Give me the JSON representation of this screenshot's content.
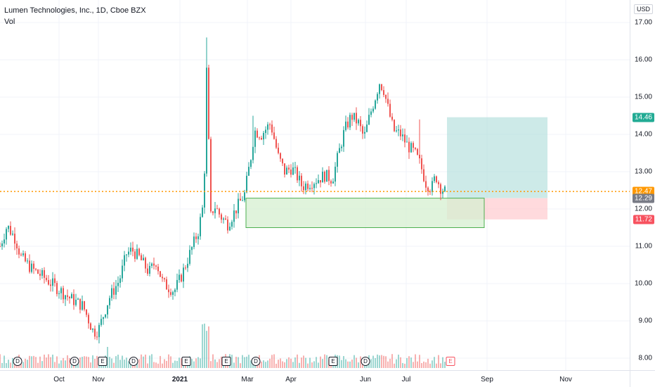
{
  "header": {
    "title": "Lumen Technologies, Inc., 1D, Cboe BZX",
    "volume_label": "Vol",
    "currency": "USD"
  },
  "price_axis": {
    "ticks": [
      "17.00",
      "16.00",
      "15.00",
      "14.00",
      "13.00",
      "12.00",
      "11.00",
      "10.00",
      "9.00",
      "8.00"
    ],
    "tags": [
      {
        "label": "14.46",
        "value": 14.46,
        "color": "#22ab94"
      },
      {
        "label": "12.47",
        "value": 12.47,
        "color": "#ff9800"
      },
      {
        "label": "12.29",
        "value": 12.29,
        "color": "#787b86"
      },
      {
        "label": "11.72",
        "value": 11.72,
        "color": "#f7525f"
      }
    ]
  },
  "time_axis": {
    "labels": [
      {
        "label": "Oct",
        "bold": false
      },
      {
        "label": "Nov",
        "bold": false
      },
      {
        "label": "2021",
        "bold": true
      },
      {
        "label": "Mar",
        "bold": false
      },
      {
        "label": "Apr",
        "bold": false
      },
      {
        "label": "Jun",
        "bold": false
      },
      {
        "label": "Jul",
        "bold": false
      },
      {
        "label": "Sep",
        "bold": false
      },
      {
        "label": "Nov",
        "bold": false
      }
    ]
  },
  "events": [
    {
      "type": "D",
      "kind": "dividend",
      "future": false
    },
    {
      "type": "D",
      "kind": "dividend",
      "future": false
    },
    {
      "type": "E",
      "kind": "earnings",
      "future": false
    },
    {
      "type": "D",
      "kind": "dividend",
      "future": false
    },
    {
      "type": "E",
      "kind": "earnings",
      "future": false
    },
    {
      "type": "E",
      "kind": "earnings",
      "future": false
    },
    {
      "type": "D",
      "kind": "dividend",
      "future": false
    },
    {
      "type": "E",
      "kind": "earnings",
      "future": false
    },
    {
      "type": "D",
      "kind": "dividend",
      "future": false
    },
    {
      "type": "E",
      "kind": "earnings",
      "future": true
    }
  ],
  "colors": {
    "up": "#26a69a",
    "down": "#ef5350",
    "last_price_line": "#ff9800",
    "target_zone": "#b2dfdb",
    "stop_zone": "#ffcdd2",
    "demand_zone": "#d6efd0"
  },
  "chart_data": {
    "type": "candlestick",
    "y_range": [
      7.85,
      17.3
    ],
    "last_price": 12.47,
    "position_tool": {
      "target": 14.46,
      "entry": 12.29,
      "stop": 11.72
    },
    "demand_zone": {
      "top": 12.29,
      "bottom": 11.5
    },
    "keypoints": [
      [
        0,
        11.0
      ],
      [
        10,
        11.55
      ],
      [
        22,
        11.2
      ],
      [
        30,
        10.7
      ],
      [
        45,
        10.4
      ],
      [
        60,
        10.2
      ],
      [
        80,
        9.9
      ],
      [
        100,
        9.6
      ],
      [
        118,
        9.4
      ],
      [
        133,
        8.7
      ],
      [
        140,
        8.75
      ],
      [
        155,
        9.6
      ],
      [
        170,
        10.1
      ],
      [
        180,
        10.8
      ],
      [
        188,
        10.9
      ],
      [
        198,
        10.7
      ],
      [
        212,
        10.3
      ],
      [
        222,
        10.6
      ],
      [
        232,
        10.0
      ],
      [
        248,
        9.8
      ],
      [
        258,
        10.2
      ],
      [
        270,
        10.8
      ],
      [
        282,
        11.4
      ],
      [
        290,
        12.2
      ],
      [
        294,
        15.7
      ],
      [
        300,
        11.8
      ],
      [
        305,
        12.1
      ],
      [
        314,
        11.8
      ],
      [
        324,
        11.6
      ],
      [
        336,
        12.0
      ],
      [
        348,
        12.4
      ],
      [
        357,
        13.4
      ],
      [
        362,
        14.1
      ],
      [
        372,
        14.0
      ],
      [
        385,
        14.3
      ],
      [
        396,
        13.4
      ],
      [
        405,
        13.0
      ],
      [
        415,
        13.1
      ],
      [
        422,
        12.9
      ],
      [
        430,
        12.6
      ],
      [
        440,
        12.7
      ],
      [
        452,
        12.8
      ],
      [
        462,
        12.9
      ],
      [
        473,
        12.8
      ],
      [
        482,
        13.5
      ],
      [
        490,
        14.1
      ],
      [
        500,
        14.5
      ],
      [
        510,
        14.3
      ],
      [
        518,
        13.9
      ],
      [
        526,
        14.5
      ],
      [
        534,
        15.0
      ],
      [
        540,
        15.4
      ],
      [
        546,
        15.2
      ],
      [
        552,
        14.7
      ],
      [
        560,
        14.1
      ],
      [
        570,
        14.0
      ],
      [
        580,
        13.7
      ],
      [
        590,
        13.5
      ],
      [
        598,
        13.2
      ],
      [
        606,
        12.7
      ],
      [
        614,
        12.55
      ],
      [
        620,
        12.9
      ],
      [
        626,
        12.6
      ],
      [
        633,
        12.47
      ]
    ],
    "spikes": [
      {
        "x": 294,
        "high": 16.6
      },
      {
        "x": 299,
        "high": 13.0
      },
      {
        "x": 598,
        "high": 14.4
      },
      {
        "x": 360,
        "high": 14.5
      }
    ],
    "volume_profile": "daily volume bars along the bottom of the chart, spiking near January 2021"
  }
}
